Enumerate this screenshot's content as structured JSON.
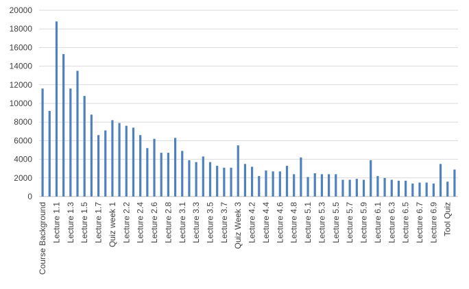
{
  "chart_data": {
    "type": "bar",
    "categories": [
      "Course Background",
      null,
      "Lecture 1.1",
      null,
      "Lecture 1.3",
      null,
      "Lecture 1.5",
      null,
      "Lecture 1.7",
      null,
      "Quiz week 1",
      null,
      "Lecture 2.2",
      null,
      "Lecture 2.4",
      null,
      "Lecture 2.6",
      null,
      "Lecture 2.8",
      null,
      "Lecture 3.1",
      null,
      "Lecture 3.3",
      null,
      "Lecture 3.5",
      null,
      "Lecture 3.7",
      null,
      "Quiz Week 3",
      null,
      "Lecture 4.2",
      null,
      "Lecture 4.4",
      null,
      "Lecture 4.6",
      null,
      "Lecture 4.8",
      null,
      "Lecture 5.1",
      null,
      "Lecture 5.3",
      null,
      "Lecture 5.5",
      null,
      "Lecture 5.7",
      null,
      "Lecture 5.9",
      null,
      "Lecture 6.1",
      null,
      "Lecture 6.3",
      null,
      "Lecture 6.5",
      null,
      "Lecture 6.7",
      null,
      "Lecture 6.9",
      null,
      "Tool Quiz",
      null
    ],
    "values": [
      11600,
      9200,
      18800,
      15300,
      11600,
      13500,
      10800,
      8800,
      6600,
      7100,
      8200,
      7900,
      7600,
      7400,
      6600,
      5200,
      6200,
      4700,
      4700,
      6300,
      4900,
      3900,
      3700,
      4300,
      3700,
      3300,
      3100,
      3100,
      5500,
      3500,
      3200,
      2200,
      2800,
      2700,
      2700,
      3300,
      2400,
      4200,
      2100,
      2500,
      2400,
      2400,
      2400,
      1800,
      1800,
      1900,
      1800,
      3900,
      2200,
      2000,
      1800,
      1700,
      1700,
      1400,
      1500,
      1500,
      1400,
      3500,
      1600,
      2900
    ],
    "color": "#4f81bd",
    "ylim": [
      0,
      20000
    ],
    "yticks": [
      0,
      2000,
      4000,
      6000,
      8000,
      10000,
      12000,
      14000,
      16000,
      18000,
      20000
    ],
    "grid": true
  }
}
